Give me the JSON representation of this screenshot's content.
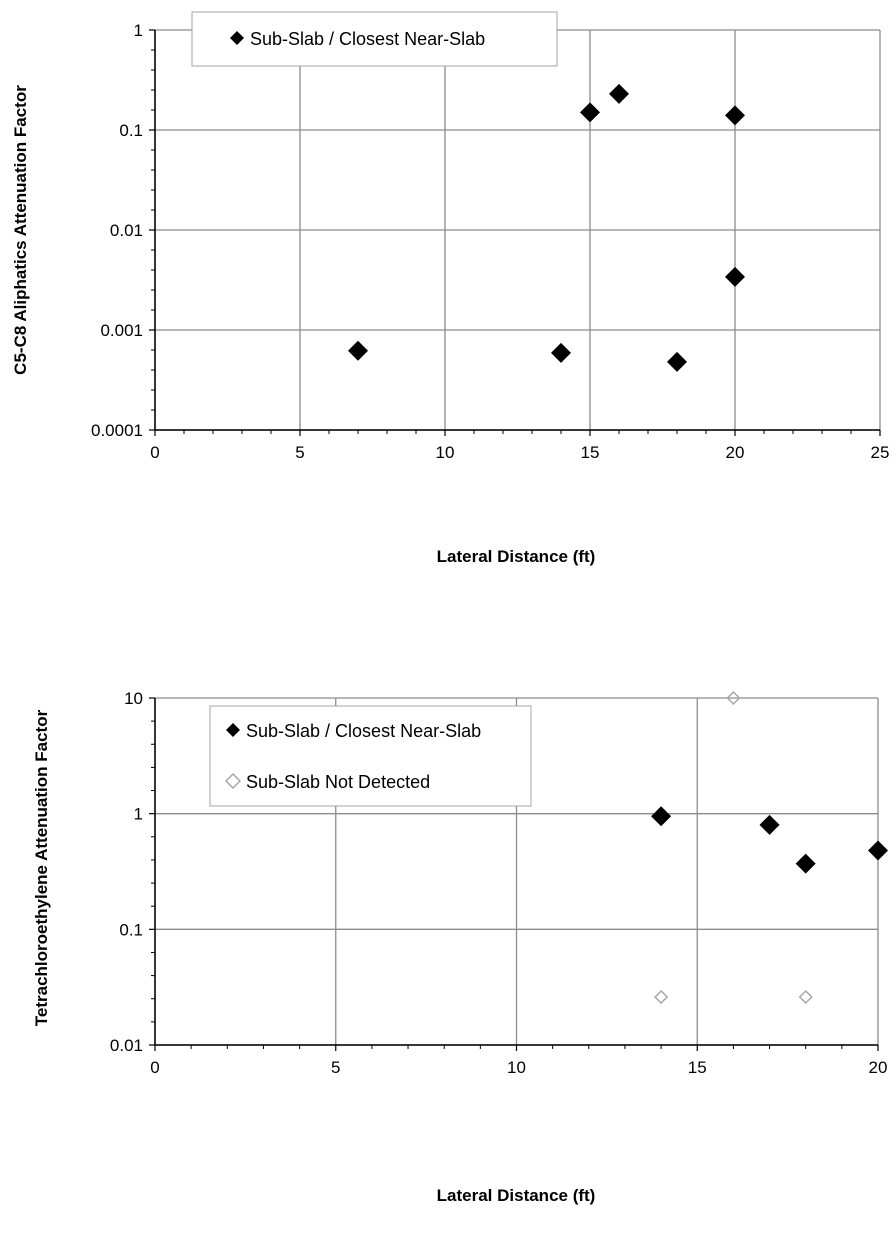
{
  "chart_data": [
    {
      "type": "scatter",
      "xlabel": "Lateral Distance  (ft)",
      "ylabel": "C5-C8 Aliphatics  Attenuation Factor",
      "xlim": [
        0,
        25
      ],
      "ylim": [
        0.0001,
        1
      ],
      "yscale": "log",
      "grid": true,
      "legend_position": "top-left",
      "x_ticks": [
        "0",
        "5",
        "10",
        "15",
        "20",
        "25"
      ],
      "y_ticks": [
        "0.0001",
        "0.001",
        "0.01",
        "0.1",
        "1"
      ],
      "series": [
        {
          "name": "Sub-Slab / Closest Near-Slab",
          "marker": "filled-diamond",
          "color": "#000000",
          "points": [
            {
              "x": 7,
              "y": 0.00062
            },
            {
              "x": 14,
              "y": 0.00059
            },
            {
              "x": 15,
              "y": 0.15
            },
            {
              "x": 16,
              "y": 0.23
            },
            {
              "x": 18,
              "y": 0.00048
            },
            {
              "x": 20,
              "y": 0.14
            },
            {
              "x": 20,
              "y": 0.0034
            }
          ]
        }
      ]
    },
    {
      "type": "scatter",
      "xlabel": "Lateral Distance  (ft)",
      "ylabel": "Tetrachloroethylene Attenuation Factor",
      "xlim": [
        0,
        20
      ],
      "ylim": [
        0.01,
        10
      ],
      "yscale": "log",
      "grid": true,
      "legend_position": "top-left",
      "x_ticks": [
        "0",
        "5",
        "10",
        "15",
        "20"
      ],
      "y_ticks": [
        "0.01",
        "0.1",
        "1",
        "10"
      ],
      "series": [
        {
          "name": "Sub-Slab / Closest Near-Slab",
          "marker": "filled-diamond",
          "color": "#000000",
          "points": [
            {
              "x": 14,
              "y": 0.95
            },
            {
              "x": 17,
              "y": 0.8
            },
            {
              "x": 18,
              "y": 0.37
            },
            {
              "x": 20,
              "y": 0.48
            }
          ]
        },
        {
          "name": "Sub-Slab Not Detected",
          "marker": "open-diamond",
          "color": "#a6a6a6",
          "points": [
            {
              "x": 14,
              "y": 0.026
            },
            {
              "x": 16,
              "y": 10
            },
            {
              "x": 18,
              "y": 0.026
            }
          ]
        }
      ]
    }
  ]
}
